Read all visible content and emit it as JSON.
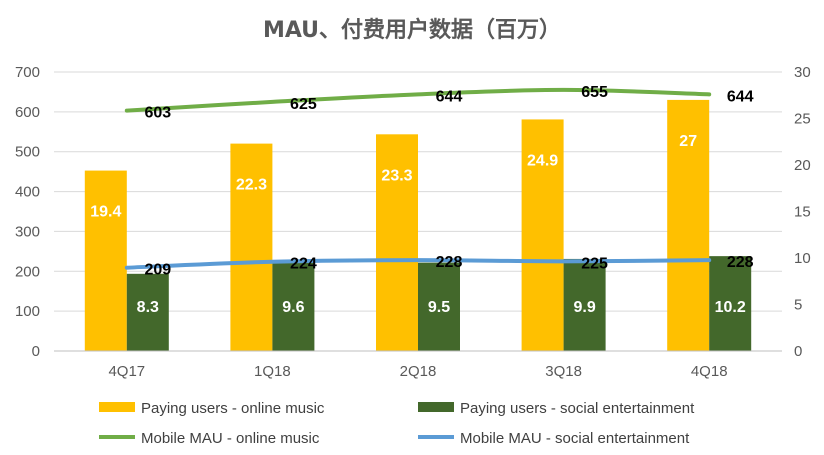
{
  "chart_data": {
    "type": "bar",
    "title": "MAU、付费用户数据（百万）",
    "categories": [
      "4Q17",
      "1Q18",
      "2Q18",
      "3Q18",
      "4Q18"
    ],
    "y_left": {
      "range": [
        0,
        700
      ],
      "ticks": [
        "0",
        "100",
        "200",
        "300",
        "400",
        "500",
        "600",
        "700"
      ]
    },
    "y_right": {
      "range": [
        0,
        30
      ],
      "ticks": [
        "0",
        "5",
        "10",
        "15",
        "20",
        "25",
        "30"
      ]
    },
    "grid": true,
    "legend_position": "bottom",
    "series": [
      {
        "name": "Paying users - online music",
        "type": "bar",
        "axis": "right",
        "color": "#FFC000",
        "values": [
          19.4,
          22.3,
          23.3,
          24.9,
          27
        ],
        "labels": [
          "19.4",
          "22.3",
          "23.3",
          "24.9",
          "27"
        ]
      },
      {
        "name": "Paying users - social entertainment",
        "type": "bar",
        "axis": "right",
        "color": "#43682B",
        "values": [
          8.3,
          9.6,
          9.5,
          9.9,
          10.2
        ],
        "labels": [
          "8.3",
          "9.6",
          "9.5",
          "9.9",
          "10.2"
        ]
      },
      {
        "name": "Mobile MAU - online music",
        "type": "line",
        "axis": "left",
        "color": "#70AD47",
        "values": [
          603,
          625,
          644,
          655,
          644
        ],
        "labels": [
          "603",
          "625",
          "644",
          "655",
          "644"
        ]
      },
      {
        "name": "Mobile MAU - social entertainment",
        "type": "line",
        "axis": "left",
        "color": "#5B9BD5",
        "values": [
          209,
          224,
          228,
          225,
          228
        ],
        "labels": [
          "209",
          "224",
          "228",
          "225",
          "228"
        ]
      }
    ]
  }
}
